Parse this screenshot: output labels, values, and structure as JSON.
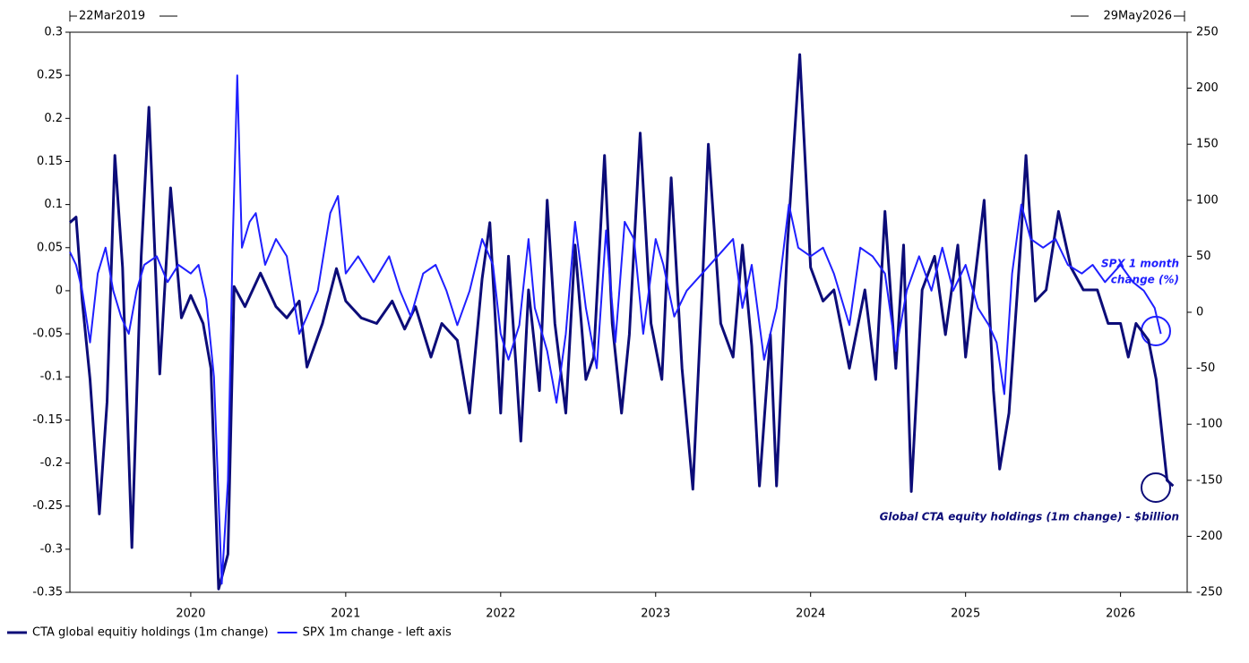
{
  "chart_data": {
    "type": "line",
    "start_label": "22Mar2019",
    "end_label": "29May2026",
    "xlim": [
      2019.22,
      2026.43
    ],
    "xticks": [
      2020,
      2021,
      2022,
      2023,
      2024,
      2025,
      2026
    ],
    "ylim": [
      -0.35,
      0.3
    ],
    "yticks": [
      -0.35,
      -0.3,
      -0.25,
      -0.2,
      -0.15,
      -0.1,
      -0.05,
      0,
      0.05,
      0.1,
      0.15,
      0.2,
      0.25,
      0.3
    ],
    "y2lim": [
      -250,
      250
    ],
    "y2ticks": [
      -250,
      -200,
      -150,
      -100,
      -50,
      0,
      50,
      100,
      150,
      200,
      250
    ],
    "grid": false,
    "legend": "bottom-left",
    "annotations": {
      "spx": [
        "SPX 1 month",
        "change (%)"
      ],
      "cta": "Global CTA equity holdings (1m change) - $billion"
    },
    "series": [
      {
        "name": "CTA global equitiy holdings (1m change)",
        "color": "#0c0c78",
        "axis": "y2",
        "x": [
          2019.22,
          2019.26,
          2019.3,
          2019.35,
          2019.41,
          2019.46,
          2019.51,
          2019.56,
          2019.62,
          2019.68,
          2019.73,
          2019.8,
          2019.87,
          2019.94,
          2020.0,
          2020.08,
          2020.13,
          2020.18,
          2020.24,
          2020.28,
          2020.35,
          2020.45,
          2020.55,
          2020.62,
          2020.7,
          2020.75,
          2020.85,
          2020.94,
          2021.0,
          2021.1,
          2021.2,
          2021.3,
          2021.38,
          2021.45,
          2021.55,
          2021.62,
          2021.72,
          2021.8,
          2021.88,
          2021.93,
          2022.0,
          2022.05,
          2022.1,
          2022.13,
          2022.18,
          2022.25,
          2022.3,
          2022.35,
          2022.42,
          2022.48,
          2022.55,
          2022.6,
          2022.67,
          2022.72,
          2022.78,
          2022.83,
          2022.9,
          2022.97,
          2023.04,
          2023.1,
          2023.17,
          2023.24,
          2023.3,
          2023.34,
          2023.42,
          2023.5,
          2023.56,
          2023.62,
          2023.67,
          2023.74,
          2023.78,
          2023.85,
          2023.93,
          2024.0,
          2024.08,
          2024.15,
          2024.25,
          2024.35,
          2024.42,
          2024.48,
          2024.55,
          2024.6,
          2024.65,
          2024.72,
          2024.8,
          2024.87,
          2024.95,
          2025.0,
          2025.06,
          2025.12,
          2025.18,
          2025.22,
          2025.28,
          2025.35,
          2025.39,
          2025.45,
          2025.52,
          2025.6,
          2025.68,
          2025.76,
          2025.85,
          2025.92,
          2026.0,
          2026.05,
          2026.1,
          2026.18,
          2026.23,
          2026.3,
          2026.34
        ],
        "values": [
          80,
          85,
          10,
          -60,
          -180,
          -80,
          140,
          40,
          -210,
          50,
          183,
          -55,
          111,
          -5,
          15,
          -10,
          -50,
          -247,
          -216,
          23,
          5,
          35,
          5,
          -5,
          10,
          -49,
          -10,
          39,
          10,
          -5,
          -10,
          10,
          -15,
          5,
          -40,
          -10,
          -25,
          -90,
          30,
          80,
          -90,
          50,
          -50,
          -115,
          20,
          -70,
          100,
          -10,
          -90,
          60,
          -60,
          -40,
          140,
          -10,
          -90,
          -20,
          160,
          -10,
          -60,
          120,
          -50,
          -158,
          20,
          150,
          -10,
          -40,
          60,
          -30,
          -155,
          -20,
          -155,
          60,
          230,
          40,
          10,
          20,
          -50,
          20,
          -60,
          90,
          -50,
          60,
          -160,
          20,
          50,
          -20,
          60,
          -40,
          30,
          100,
          -70,
          -140,
          -90,
          50,
          140,
          10,
          20,
          90,
          40,
          20,
          20,
          -10,
          -10,
          -40,
          -10,
          -25,
          -60,
          -150,
          -155
        ]
      },
      {
        "name": "SPX 1m change - left axis",
        "color": "#1f1fff",
        "x": [
          2019.22,
          2019.26,
          2019.3,
          2019.35,
          2019.4,
          2019.45,
          2019.5,
          2019.55,
          2019.6,
          2019.65,
          2019.7,
          2019.78,
          2019.85,
          2019.92,
          2020.0,
          2020.05,
          2020.1,
          2020.15,
          2020.2,
          2020.24,
          2020.27,
          2020.3,
          2020.33,
          2020.38,
          2020.42,
          2020.48,
          2020.55,
          2020.62,
          2020.7,
          2020.75,
          2020.82,
          2020.9,
          2020.95,
          2021.0,
          2021.08,
          2021.18,
          2021.28,
          2021.35,
          2021.42,
          2021.5,
          2021.58,
          2021.65,
          2021.72,
          2021.8,
          2021.88,
          2021.95,
          2022.0,
          2022.05,
          2022.12,
          2022.18,
          2022.22,
          2022.3,
          2022.36,
          2022.42,
          2022.48,
          2022.55,
          2022.62,
          2022.68,
          2022.74,
          2022.8,
          2022.86,
          2022.92,
          2023.0,
          2023.05,
          2023.12,
          2023.2,
          2023.3,
          2023.4,
          2023.5,
          2023.56,
          2023.62,
          2023.7,
          2023.78,
          2023.86,
          2023.92,
          2024.0,
          2024.08,
          2024.15,
          2024.25,
          2024.32,
          2024.4,
          2024.48,
          2024.55,
          2024.62,
          2024.7,
          2024.78,
          2024.85,
          2024.92,
          2025.0,
          2025.08,
          2025.15,
          2025.2,
          2025.25,
          2025.3,
          2025.36,
          2025.42,
          2025.5,
          2025.58,
          2025.66,
          2025.75,
          2025.82,
          2025.9,
          2026.0,
          2026.08,
          2026.15,
          2026.22,
          2026.26
        ],
        "values": [
          0.045,
          0.03,
          0.0,
          -0.06,
          0.02,
          0.05,
          0.0,
          -0.03,
          -0.05,
          0.0,
          0.03,
          0.04,
          0.01,
          0.03,
          0.02,
          0.03,
          -0.01,
          -0.1,
          -0.34,
          -0.22,
          0.05,
          0.25,
          0.05,
          0.08,
          0.09,
          0.03,
          0.06,
          0.04,
          -0.05,
          -0.03,
          0.0,
          0.09,
          0.11,
          0.02,
          0.04,
          0.01,
          0.04,
          0.0,
          -0.03,
          0.02,
          0.03,
          0.0,
          -0.04,
          0.0,
          0.06,
          0.03,
          -0.05,
          -0.08,
          -0.04,
          0.06,
          -0.02,
          -0.07,
          -0.13,
          -0.05,
          0.08,
          -0.02,
          -0.09,
          0.07,
          -0.06,
          0.08,
          0.06,
          -0.05,
          0.06,
          0.03,
          -0.03,
          0.0,
          0.02,
          0.04,
          0.06,
          -0.02,
          0.03,
          -0.08,
          -0.02,
          0.1,
          0.05,
          0.04,
          0.05,
          0.02,
          -0.04,
          0.05,
          0.04,
          0.02,
          -0.07,
          0.0,
          0.04,
          0.0,
          0.05,
          0.0,
          0.03,
          -0.02,
          -0.04,
          -0.06,
          -0.12,
          0.02,
          0.1,
          0.06,
          0.05,
          0.06,
          0.03,
          0.02,
          0.03,
          0.01,
          0.03,
          0.01,
          0.0,
          -0.02,
          -0.05
        ]
      }
    ]
  }
}
